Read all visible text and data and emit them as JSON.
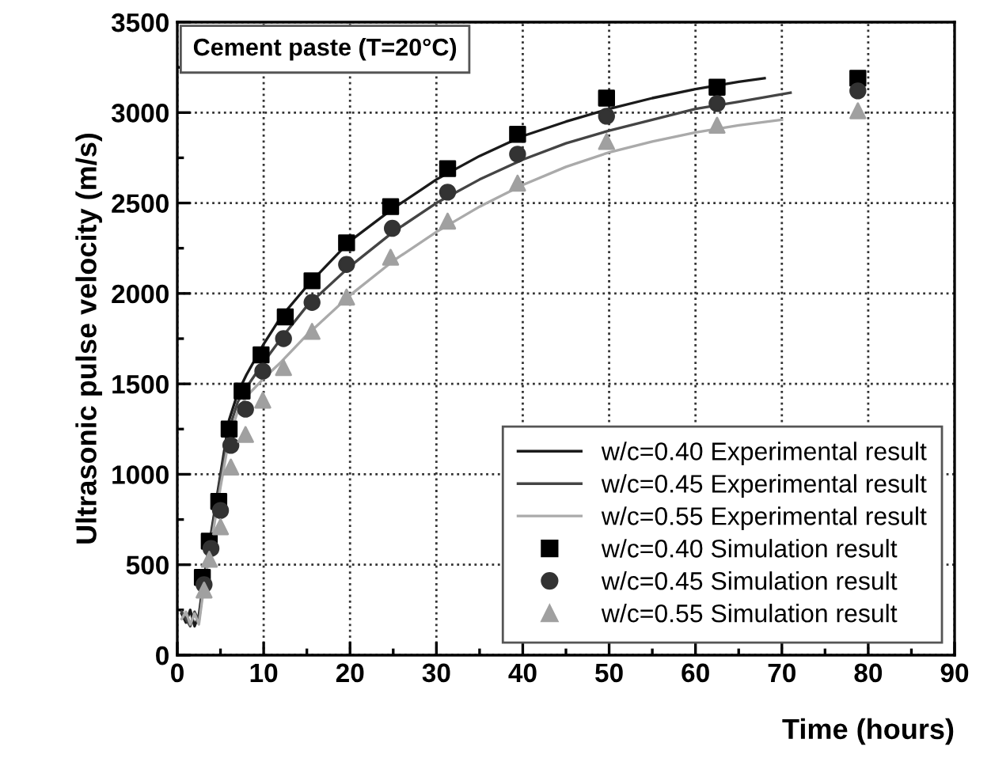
{
  "chart_data": {
    "type": "line",
    "xlabel": "Time (hours)",
    "ylabel": "Ultrasonic pulse velocity (m/s)",
    "annotations": [
      "Cement paste (T=20°C)"
    ],
    "xlim": [
      0,
      90
    ],
    "ylim": [
      0,
      3500
    ],
    "xticks": [
      0,
      {
        "value": 5,
        "label": null
      },
      10,
      {
        "value": 15,
        "label": null
      },
      20,
      {
        "value": 25,
        "label": null
      },
      30,
      {
        "value": 35,
        "label": null
      },
      40,
      {
        "value": 45,
        "label": null
      },
      50,
      {
        "value": 55,
        "label": null
      },
      60,
      {
        "value": 65,
        "label": null
      },
      70,
      {
        "value": 75,
        "label": null
      },
      80,
      {
        "value": 85,
        "label": null
      },
      90
    ],
    "yticks": [
      0,
      {
        "value": 250,
        "label": null
      },
      500,
      {
        "value": 750,
        "label": null
      },
      1000,
      {
        "value": 1250,
        "label": null
      },
      1500,
      {
        "value": 1750,
        "label": null
      },
      2000,
      {
        "value": 2250,
        "label": null
      },
      2500,
      {
        "value": 2750,
        "label": null
      },
      3000,
      {
        "value": 3250,
        "label": null
      },
      3500
    ],
    "grid": true,
    "legend": "lower right",
    "series": [
      {
        "name": "w/c=0.40 Experimental result",
        "marker": "none",
        "color": "#1a1a1a",
        "x": [
          0.5,
          1,
          1.5,
          2,
          2.5,
          3,
          4,
          5,
          6,
          7,
          8,
          10,
          12,
          15,
          20,
          25,
          30,
          35,
          40,
          45,
          50,
          55,
          60,
          65,
          68
        ],
        "values": [
          230,
          180,
          250,
          160,
          220,
          400,
          700,
          1000,
          1300,
          1450,
          1550,
          1720,
          1870,
          2040,
          2290,
          2470,
          2630,
          2760,
          2870,
          2950,
          3020,
          3080,
          3130,
          3170,
          3190
        ]
      },
      {
        "name": "w/c=0.45 Experimental result",
        "marker": "none",
        "color": "#444444",
        "x": [
          0.5,
          1,
          1.5,
          2,
          2.5,
          3,
          4,
          5,
          6,
          7,
          8,
          10,
          12,
          15,
          20,
          25,
          30,
          35,
          40,
          45,
          50,
          55,
          60,
          65,
          71
        ],
        "values": [
          240,
          200,
          160,
          240,
          190,
          380,
          680,
          980,
          1250,
          1400,
          1480,
          1620,
          1750,
          1930,
          2150,
          2340,
          2500,
          2630,
          2740,
          2830,
          2900,
          2960,
          3020,
          3060,
          3110
        ]
      },
      {
        "name": "w/c=0.55 Experimental result",
        "marker": "none",
        "color": "#aaaaaa",
        "x": [
          0.5,
          1,
          1.5,
          2,
          2.5,
          3,
          4,
          5,
          6,
          7,
          8,
          10,
          12,
          15,
          20,
          25,
          30,
          35,
          40,
          45,
          50,
          55,
          60,
          65,
          70
        ],
        "values": [
          200,
          240,
          170,
          230,
          170,
          350,
          640,
          930,
          1200,
          1350,
          1430,
          1530,
          1620,
          1770,
          1990,
          2180,
          2340,
          2480,
          2600,
          2700,
          2780,
          2840,
          2890,
          2930,
          2960
        ]
      },
      {
        "name": "w/c=0.40 Simulation result",
        "type": "scatter",
        "marker": "square",
        "color": "#000000",
        "x": [
          2.9,
          3.7,
          4.8,
          6.0,
          7.5,
          9.7,
          12.5,
          15.6,
          19.6,
          24.7,
          31.3,
          39.4,
          49.7,
          62.5,
          78.8
        ],
        "values": [
          430,
          630,
          850,
          1250,
          1460,
          1660,
          1870,
          2070,
          2280,
          2480,
          2690,
          2880,
          3080,
          3140,
          3190
        ]
      },
      {
        "name": "w/c=0.45 Simulation result",
        "type": "scatter",
        "marker": "circle",
        "color": "#333333",
        "x": [
          3.1,
          3.9,
          5.0,
          6.2,
          7.9,
          9.9,
          12.3,
          15.6,
          19.6,
          24.9,
          31.3,
          39.4,
          49.7,
          62.5,
          78.8
        ],
        "values": [
          390,
          590,
          800,
          1160,
          1360,
          1570,
          1750,
          1950,
          2160,
          2360,
          2560,
          2770,
          2980,
          3050,
          3120
        ]
      },
      {
        "name": "w/c=0.55 Simulation result",
        "type": "scatter",
        "marker": "triangle",
        "color": "#a0a0a0",
        "x": [
          3.1,
          3.7,
          5.0,
          6.2,
          7.9,
          9.9,
          12.3,
          15.6,
          19.6,
          24.7,
          31.3,
          39.4,
          49.7,
          62.5,
          78.8
        ],
        "values": [
          360,
          530,
          710,
          1040,
          1220,
          1410,
          1590,
          1790,
          1980,
          2200,
          2400,
          2610,
          2840,
          2930,
          3010
        ]
      }
    ]
  }
}
